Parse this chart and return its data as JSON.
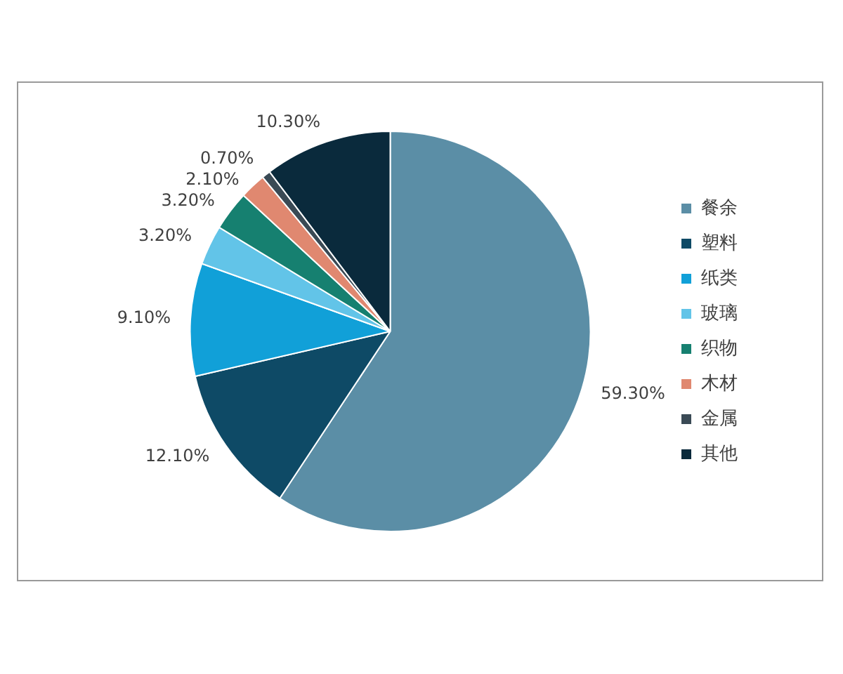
{
  "chart_data": {
    "type": "pie",
    "categories": [
      "餐余",
      "塑料",
      "纸类",
      "玻璃",
      "织物",
      "木材",
      "金属",
      "其他"
    ],
    "values": [
      59.3,
      12.1,
      9.1,
      3.2,
      3.2,
      2.1,
      0.7,
      10.3
    ],
    "colors": [
      "#5b8ea6",
      "#0e4a66",
      "#11a0d8",
      "#62c4e8",
      "#168070",
      "#e08870",
      "#3a4a55",
      "#0a2a3c"
    ],
    "value_labels": [
      "59.30%",
      "12.10%",
      "9.10%",
      "3.20%",
      "3.20%",
      "2.10%",
      "0.70%",
      "10.30%"
    ],
    "legend": "right"
  }
}
